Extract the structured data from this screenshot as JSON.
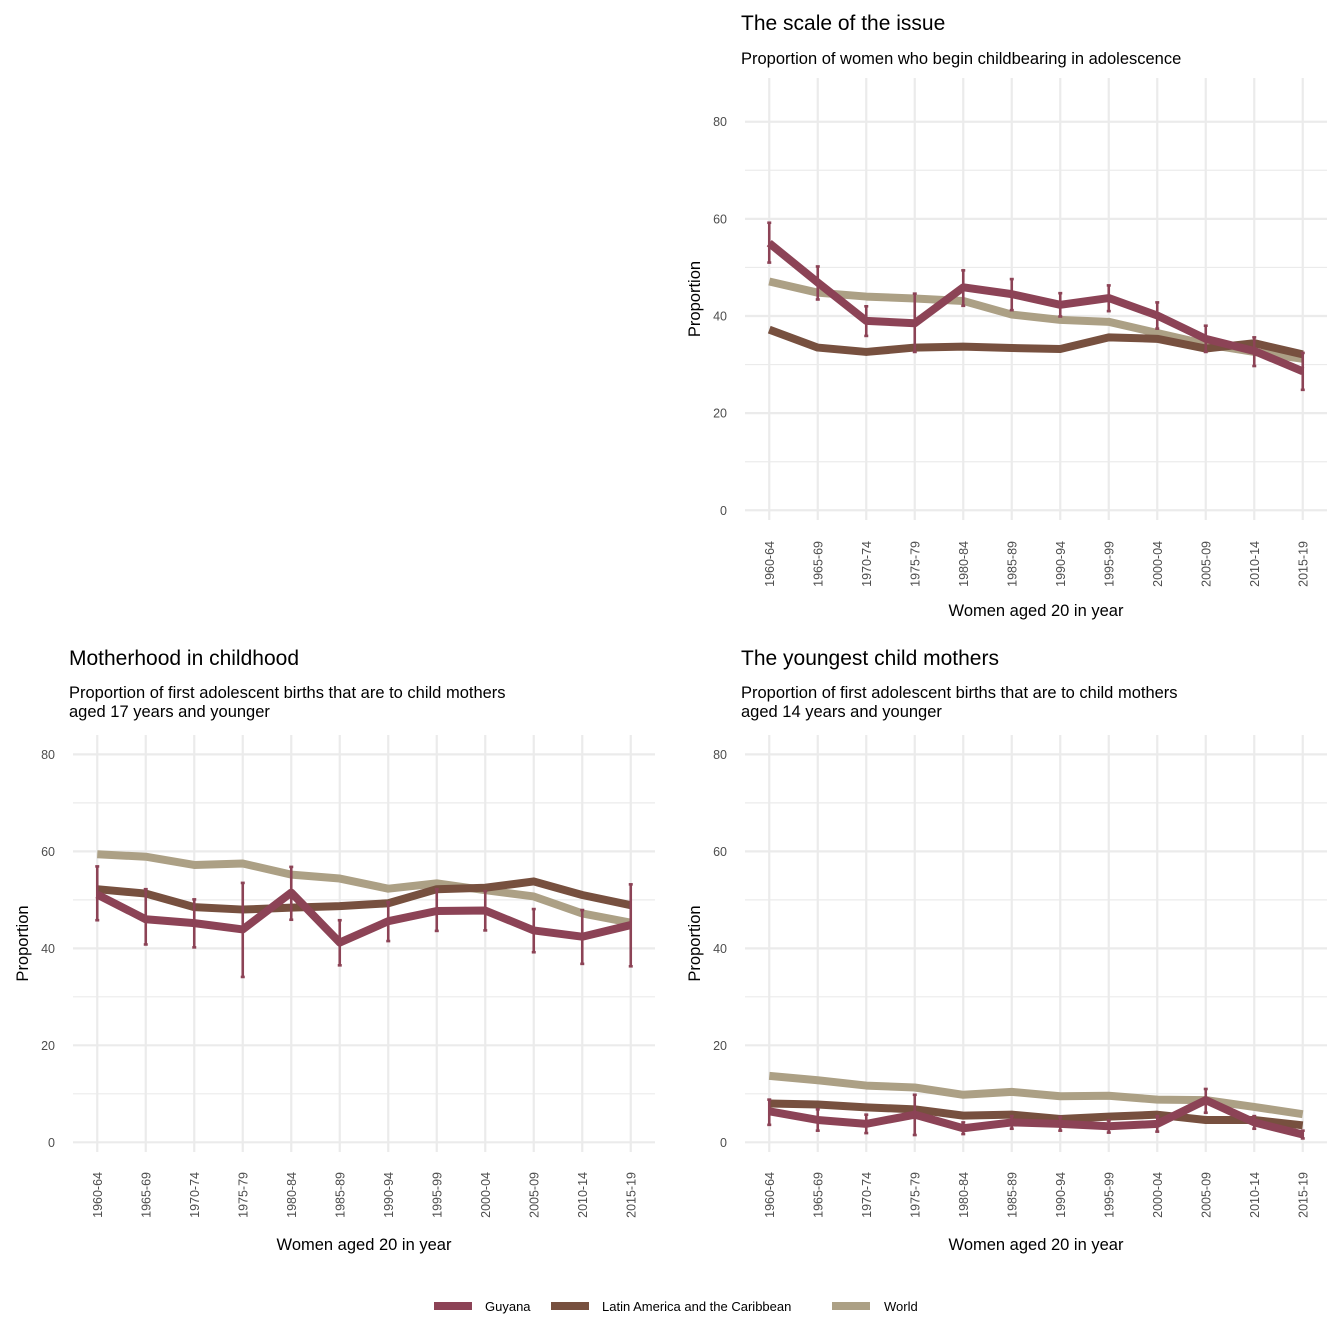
{
  "chart_data": [
    {
      "type": "line",
      "title": "The scale of the issue",
      "subtitle": [
        "Proportion of women who begin childbearing in adolescence"
      ],
      "xlabel": "Women aged 20 in year",
      "ylabel": "Proportion",
      "categories": [
        "1960-64",
        "1965-69",
        "1970-74",
        "1975-79",
        "1980-84",
        "1985-89",
        "1990-94",
        "1995-99",
        "2000-04",
        "2005-09",
        "2010-14",
        "2015-19"
      ],
      "y_ticks": [
        0,
        20,
        40,
        60,
        80
      ],
      "ylim": [
        -2,
        89
      ],
      "grid": true,
      "series": [
        {
          "name": "World",
          "color": "#ACA085",
          "values": [
            47.1,
            44.8,
            44.0,
            43.6,
            43.1,
            40.3,
            39.2,
            38.8,
            36.5,
            34.2,
            32.6,
            31.2
          ]
        },
        {
          "name": "Latin America and the Caribbean",
          "color": "#77503F",
          "values": [
            37.2,
            33.5,
            32.6,
            33.5,
            33.7,
            33.4,
            33.2,
            35.6,
            35.3,
            33.3,
            34.4,
            32.1
          ]
        },
        {
          "name": "Guyana",
          "color": "#8C4356",
          "values": [
            55.0,
            46.9,
            39.0,
            38.5,
            45.9,
            44.5,
            42.3,
            43.7,
            40.1,
            35.3,
            32.8,
            28.6
          ],
          "lower": [
            51.0,
            43.4,
            35.9,
            32.6,
            42.1,
            41.2,
            39.9,
            41.0,
            37.4,
            32.6,
            29.7,
            24.8
          ],
          "upper": [
            59.2,
            50.2,
            42.0,
            44.6,
            49.4,
            47.6,
            44.7,
            46.3,
            42.8,
            38.0,
            35.6,
            32.4
          ]
        }
      ]
    },
    {
      "type": "line",
      "title": "Motherhood in childhood",
      "subtitle": [
        "Proportion of first adolescent births that are to child mothers",
        "aged 17 years and younger"
      ],
      "xlabel": "Women aged 20 in year",
      "ylabel": "Proportion",
      "categories": [
        "1960-64",
        "1965-69",
        "1970-74",
        "1975-79",
        "1980-84",
        "1985-89",
        "1990-94",
        "1995-99",
        "2000-04",
        "2005-09",
        "2010-14",
        "2015-19"
      ],
      "y_ticks": [
        0,
        20,
        40,
        60,
        80
      ],
      "ylim": [
        -2,
        84
      ],
      "grid": true,
      "series": [
        {
          "name": "World",
          "color": "#ACA085",
          "values": [
            59.4,
            58.9,
            57.2,
            57.5,
            55.2,
            54.4,
            52.3,
            53.4,
            52.0,
            50.7,
            47.2,
            45.3
          ]
        },
        {
          "name": "Latin America and the Caribbean",
          "color": "#77503F",
          "values": [
            52.2,
            51.3,
            48.5,
            48.0,
            48.4,
            48.7,
            49.3,
            52.2,
            52.5,
            53.8,
            51.0,
            48.9
          ]
        },
        {
          "name": "Guyana",
          "color": "#8C4356",
          "values": [
            51.1,
            46.0,
            45.2,
            43.9,
            51.5,
            41.2,
            45.6,
            47.7,
            47.8,
            43.7,
            42.4,
            44.8
          ],
          "lower": [
            45.8,
            40.8,
            40.2,
            34.1,
            45.9,
            36.5,
            41.5,
            43.6,
            43.7,
            39.2,
            36.8,
            36.3
          ],
          "upper": [
            56.9,
            52.2,
            50.1,
            53.5,
            56.8,
            45.8,
            49.5,
            52.2,
            51.8,
            48.1,
            47.9,
            53.2
          ]
        }
      ]
    },
    {
      "type": "line",
      "title": "The youngest child mothers",
      "subtitle": [
        "Proportion of first adolescent births that are to child mothers",
        "aged 14 years and younger"
      ],
      "xlabel": "Women aged 20 in year",
      "ylabel": "Proportion",
      "categories": [
        "1960-64",
        "1965-69",
        "1970-74",
        "1975-79",
        "1980-84",
        "1985-89",
        "1990-94",
        "1995-99",
        "2000-04",
        "2005-09",
        "2010-14",
        "2015-19"
      ],
      "y_ticks": [
        0,
        20,
        40,
        60,
        80
      ],
      "ylim": [
        -2,
        84
      ],
      "grid": true,
      "series": [
        {
          "name": "World",
          "color": "#ACA085",
          "values": [
            13.7,
            12.8,
            11.7,
            11.3,
            9.8,
            10.4,
            9.5,
            9.6,
            8.8,
            8.7,
            7.3,
            5.8
          ]
        },
        {
          "name": "Latin America and the Caribbean",
          "color": "#77503F",
          "values": [
            8.0,
            7.8,
            7.2,
            6.8,
            5.5,
            5.7,
            4.8,
            5.3,
            5.7,
            4.6,
            4.6,
            3.5
          ]
        },
        {
          "name": "Guyana",
          "color": "#8C4356",
          "values": [
            6.4,
            4.6,
            3.8,
            5.7,
            2.9,
            4.1,
            3.8,
            3.3,
            3.8,
            8.7,
            4.1,
            1.6
          ],
          "lower": [
            3.6,
            2.4,
            1.9,
            1.5,
            1.7,
            2.8,
            2.4,
            2.0,
            2.2,
            6.1,
            2.8,
            0.8
          ],
          "upper": [
            8.8,
            6.8,
            5.7,
            9.8,
            4.1,
            5.4,
            5.2,
            4.5,
            5.4,
            11.0,
            5.4,
            2.4
          ]
        }
      ]
    }
  ],
  "legend": {
    "placement": "bottom",
    "items": [
      {
        "label": "Guyana",
        "color": "#8C4356"
      },
      {
        "label": "Latin America and the Caribbean",
        "color": "#77503F"
      },
      {
        "label": "World",
        "color": "#ACA085"
      }
    ]
  }
}
